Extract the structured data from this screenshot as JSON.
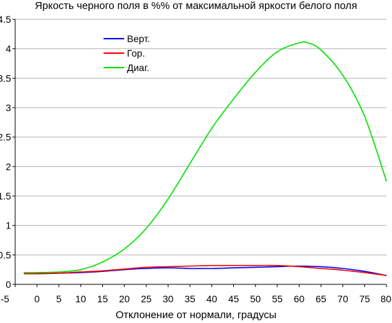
{
  "chart_data": {
    "type": "line",
    "title": "Яркость черного поля в %% от максимальной яркости белого поля",
    "xlabel": "Отклонение от нормали, градусы",
    "ylabel": "",
    "xlim": [
      -5,
      80
    ],
    "ylim": [
      0,
      4.5
    ],
    "x_ticks": [
      "-5",
      "0",
      "5",
      "10",
      "15",
      "20",
      "25",
      "30",
      "35",
      "40",
      "45",
      "50",
      "55",
      "60",
      "65",
      "70",
      "75",
      "80"
    ],
    "y_ticks": [
      "0",
      "0.5",
      "1",
      "1.5",
      "2",
      "2.5",
      "3",
      "3.5",
      "4",
      "4.5"
    ],
    "grid": "horizontal",
    "legend_position": "top-left",
    "series": [
      {
        "name": "Верт.",
        "color": "#0000ff",
        "x": [
          -3,
          0,
          5,
          10,
          15,
          20,
          25,
          30,
          35,
          40,
          45,
          50,
          55,
          60,
          65,
          70,
          75,
          80
        ],
        "y": [
          0.18,
          0.18,
          0.19,
          0.2,
          0.22,
          0.25,
          0.27,
          0.28,
          0.27,
          0.27,
          0.28,
          0.29,
          0.3,
          0.31,
          0.3,
          0.27,
          0.22,
          0.15
        ]
      },
      {
        "name": "Гор.",
        "color": "#ff0000",
        "x": [
          -3,
          0,
          5,
          10,
          15,
          20,
          25,
          30,
          35,
          40,
          45,
          50,
          55,
          60,
          65,
          70,
          75,
          80
        ],
        "y": [
          0.18,
          0.18,
          0.19,
          0.21,
          0.23,
          0.26,
          0.29,
          0.3,
          0.31,
          0.32,
          0.32,
          0.32,
          0.32,
          0.3,
          0.27,
          0.24,
          0.2,
          0.15
        ]
      },
      {
        "name": "Диаг.",
        "color": "#00e000",
        "x": [
          -3,
          0,
          5,
          10,
          15,
          20,
          25,
          30,
          35,
          40,
          45,
          50,
          55,
          60,
          62,
          65,
          70,
          75,
          80
        ],
        "y": [
          0.2,
          0.2,
          0.21,
          0.25,
          0.38,
          0.6,
          0.95,
          1.45,
          2.05,
          2.65,
          3.15,
          3.6,
          3.95,
          4.1,
          4.1,
          3.98,
          3.55,
          2.85,
          1.75
        ]
      }
    ]
  }
}
